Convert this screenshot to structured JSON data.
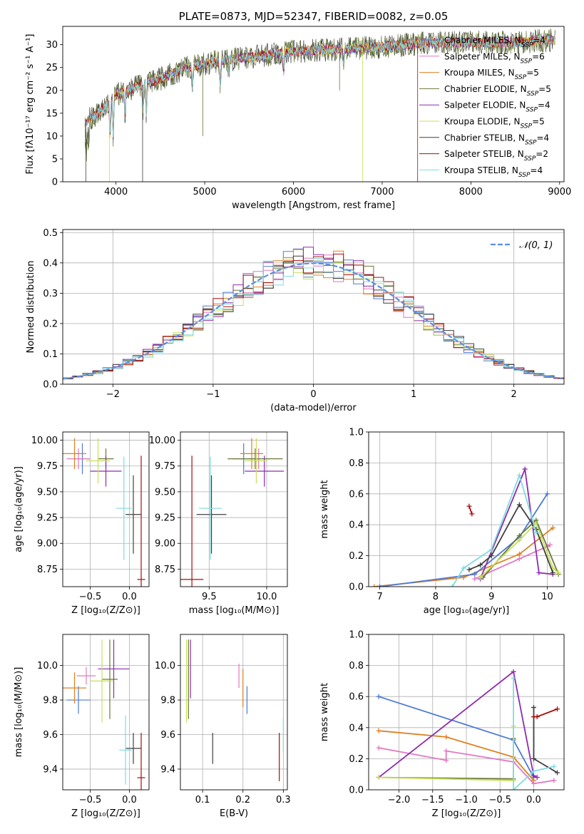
{
  "colors": {
    "chabrier_miles": "#4e79d6",
    "salpeter_miles": "#e377c2",
    "kroupa_miles": "#e07f1f",
    "chabrier_elodie": "#6a7a3a",
    "salpeter_elodie": "#8e2bb0",
    "kroupa_elodie": "#c7e05a",
    "chabrier_stelib": "#3f3f3f",
    "salpeter_stelib": "#a80d0d",
    "kroupa_stelib": "#7fdbe0",
    "normal_curve": "#5b8ee6",
    "grid": "#b0b0b0"
  },
  "chart_data": [
    {
      "id": "spectrum",
      "type": "line",
      "title": "PLATE=0873, MJD=52347, FIBERID=0082, z=0.05",
      "xlabel": "wavelength [Angstrom, rest frame]",
      "ylabel": "Flux [fλ10⁻¹⁷ erg cm⁻² s⁻¹ A⁻¹]",
      "xlim": [
        3400,
        9050
      ],
      "ylim": [
        0,
        34
      ],
      "xticks": [
        4000,
        5000,
        6000,
        7000,
        8000,
        9000
      ],
      "yticks": [
        0,
        5,
        10,
        15,
        20,
        25,
        30
      ],
      "grid": false,
      "legend_position": "top-right",
      "continuum_x": [
        3650,
        3800,
        4000,
        4200,
        4500,
        4800,
        5200,
        5600,
        6000,
        6500,
        7000,
        7500,
        8000,
        8500,
        8900
      ],
      "continuum_y": [
        13,
        15,
        19,
        20.5,
        22.5,
        25,
        26.5,
        27.5,
        28.5,
        29,
        29.5,
        30.5,
        30.5,
        30.5,
        31
      ],
      "series": [
        {
          "name": "Chabrier MILES, N_SSP=4",
          "color_key": "chabrier_miles"
        },
        {
          "name": "Salpeter MILES, N_SSP=6",
          "color_key": "salpeter_miles"
        },
        {
          "name": "Kroupa MILES, N_SSP=5",
          "color_key": "kroupa_miles"
        },
        {
          "name": "Chabrier ELODIE, N_SSP=5",
          "color_key": "chabrier_elodie"
        },
        {
          "name": "Salpeter ELODIE, N_SSP=4",
          "color_key": "salpeter_elodie"
        },
        {
          "name": "Kroupa ELODIE, N_SSP=5",
          "color_key": "kroupa_elodie"
        },
        {
          "name": "Chabrier STELIB, N_SSP=4",
          "color_key": "chabrier_stelib"
        },
        {
          "name": "Salpeter STELIB, N_SSP=2",
          "color_key": "salpeter_stelib"
        },
        {
          "name": "Kroupa STELIB, N_SSP=4",
          "color_key": "kroupa_stelib"
        }
      ]
    },
    {
      "id": "residuals",
      "type": "line",
      "xlabel": "(data-model)/error",
      "ylabel": "Normed distribution",
      "xlim": [
        -2.5,
        2.5
      ],
      "ylim": [
        0,
        0.51
      ],
      "xticks": [
        -2,
        -1,
        0,
        1,
        2
      ],
      "yticks": [
        0.0,
        0.1,
        0.2,
        0.3,
        0.4,
        0.5
      ],
      "grid": true,
      "legend_position": "top-right",
      "legend_label": "𝒩(0, 1)",
      "bin_width": 0.1
    },
    {
      "id": "age_vs_Z",
      "type": "scatter",
      "xlabel": "Z [log₁₀(Z/Z⊙)]",
      "ylabel": "age  [log₁₀(age/yr)]",
      "xlim": [
        -0.85,
        0.25
      ],
      "ylim": [
        8.58,
        10.08
      ],
      "xticks": [
        -0.5,
        0.0
      ],
      "yticks": [
        8.75,
        9.0,
        9.25,
        9.5,
        9.75,
        10.0
      ],
      "grid": true,
      "points": [
        {
          "c": "chabrier_miles",
          "x": -0.6,
          "xe": 0.1,
          "y": 9.82,
          "ye": 0.15
        },
        {
          "c": "salpeter_miles",
          "x": -0.65,
          "xe": 0.15,
          "y": 9.82,
          "ye": 0.1
        },
        {
          "c": "kroupa_miles",
          "x": -0.7,
          "xe": 0.15,
          "y": 9.87,
          "ye": 0.15
        },
        {
          "c": "chabrier_elodie",
          "x": -0.3,
          "xe": 0.1,
          "y": 9.82,
          "ye": 0.1
        },
        {
          "c": "salpeter_elodie",
          "x": -0.3,
          "xe": 0.2,
          "y": 9.7,
          "ye": 0.15
        },
        {
          "c": "kroupa_elodie",
          "x": -0.4,
          "xe": 0.15,
          "y": 9.8,
          "ye": 0.22
        },
        {
          "c": "chabrier_stelib",
          "x": 0.05,
          "xe": 0.1,
          "y": 9.28,
          "ye": 0.38
        },
        {
          "c": "salpeter_stelib",
          "x": 0.15,
          "xe": 0.05,
          "y": 8.65,
          "ye": 1.2
        },
        {
          "c": "kroupa_stelib",
          "x": -0.07,
          "xe": 0.1,
          "y": 9.34,
          "ye": 0.5
        }
      ]
    },
    {
      "id": "age_vs_mass",
      "type": "scatter",
      "xlabel": "mass [log₁₀(M/M⊙)]",
      "ylabel": "",
      "xlim": [
        9.25,
        10.18
      ],
      "ylim": [
        8.58,
        10.08
      ],
      "xticks": [
        9.5,
        10.0
      ],
      "yticks": [
        8.75,
        9.0,
        9.25,
        9.5,
        9.75,
        10.0
      ],
      "grid": true,
      "points": [
        {
          "c": "chabrier_miles",
          "x": 9.8,
          "xe": 0.1,
          "y": 9.82,
          "ye": 0.15
        },
        {
          "c": "salpeter_miles",
          "x": 9.93,
          "xe": 0.1,
          "y": 9.82,
          "ye": 0.1
        },
        {
          "c": "kroupa_miles",
          "x": 9.87,
          "xe": 0.1,
          "y": 9.87,
          "ye": 0.15
        },
        {
          "c": "chabrier_elodie",
          "x": 9.9,
          "xe": 0.24,
          "y": 9.82,
          "ye": 0.1
        },
        {
          "c": "salpeter_elodie",
          "x": 9.98,
          "xe": 0.17,
          "y": 9.7,
          "ye": 0.15
        },
        {
          "c": "kroupa_elodie",
          "x": 9.91,
          "xe": 0.1,
          "y": 9.8,
          "ye": 0.22
        },
        {
          "c": "chabrier_stelib",
          "x": 9.52,
          "xe": 0.13,
          "y": 9.28,
          "ye": 0.38
        },
        {
          "c": "salpeter_stelib",
          "x": 9.35,
          "xe": 0.1,
          "y": 8.65,
          "ye": 1.2
        },
        {
          "c": "kroupa_stelib",
          "x": 9.51,
          "xe": 0.1,
          "y": 9.34,
          "ye": 0.5
        }
      ]
    },
    {
      "id": "mass_weight_vs_age",
      "type": "line",
      "xlabel": "age  [log₁₀(age/yr)]",
      "ylabel": "mass weight",
      "xlim": [
        6.8,
        10.3
      ],
      "ylim": [
        0,
        1
      ],
      "xticks": [
        7,
        8,
        9,
        10
      ],
      "yticks": [
        0.0,
        0.2,
        0.4,
        0.6,
        0.8,
        1.0
      ],
      "grid": true,
      "series": [
        {
          "c": "kroupa_miles",
          "x": [
            6.9,
            8.5,
            9.5,
            10.1
          ],
          "y": [
            0.0,
            0.06,
            0.21,
            0.38
          ]
        },
        {
          "c": "chabrier_miles",
          "x": [
            7.0,
            8.7,
            9.5,
            10.0
          ],
          "y": [
            0.0,
            0.08,
            0.32,
            0.6
          ]
        },
        {
          "c": "salpeter_miles",
          "x": [
            8.7,
            9.5,
            10.0,
            10.05
          ],
          "y": [
            0.05,
            0.18,
            0.26,
            0.27
          ]
        },
        {
          "c": "chabrier_elodie",
          "x": [
            8.85,
            9.5,
            9.8,
            10.2
          ],
          "y": [
            0.06,
            0.33,
            0.43,
            0.08
          ]
        },
        {
          "c": "salpeter_elodie",
          "x": [
            8.8,
            9.6,
            9.85,
            10.1
          ],
          "y": [
            0.05,
            0.76,
            0.09,
            0.08
          ]
        },
        {
          "c": "kroupa_elodie",
          "x": [
            8.8,
            9.5,
            9.8,
            10.1,
            10.2
          ],
          "y": [
            0.06,
            0.3,
            0.41,
            0.12,
            0.09
          ]
        },
        {
          "c": "chabrier_stelib",
          "x": [
            8.6,
            8.8,
            9.0,
            9.5,
            9.8,
            10.1
          ],
          "y": [
            0.11,
            0.14,
            0.2,
            0.53,
            0.37,
            0.09
          ]
        },
        {
          "c": "salpeter_stelib",
          "x": [
            8.6,
            8.65
          ],
          "y": [
            0.52,
            0.47
          ]
        },
        {
          "c": "kroupa_stelib",
          "x": [
            8.3,
            8.5,
            9.0,
            9.5,
            9.8
          ],
          "y": [
            0.0,
            0.12,
            0.24,
            0.72,
            0.35
          ]
        }
      ]
    },
    {
      "id": "mass_vs_Z",
      "type": "scatter",
      "xlabel": "Z [log₁₀(Z/Z⊙)]",
      "ylabel": "mass [log₁₀(M/M⊙)]",
      "xlim": [
        -0.85,
        0.25
      ],
      "ylim": [
        9.28,
        10.18
      ],
      "xticks": [
        -0.5,
        0.0
      ],
      "yticks": [
        9.4,
        9.6,
        9.8,
        10.0
      ],
      "grid": true,
      "points": [
        {
          "c": "chabrier_miles",
          "x": -0.65,
          "xe": 0.15,
          "y": 9.8,
          "ye": 0.08
        },
        {
          "c": "salpeter_miles",
          "x": -0.55,
          "xe": 0.12,
          "y": 9.94,
          "ye": 0.05
        },
        {
          "c": "kroupa_miles",
          "x": -0.7,
          "xe": 0.15,
          "y": 9.87,
          "ye": 0.09
        },
        {
          "c": "chabrier_elodie",
          "x": -0.25,
          "xe": 0.1,
          "y": 9.92,
          "ye": 0.23
        },
        {
          "c": "salpeter_elodie",
          "x": -0.2,
          "xe": 0.2,
          "y": 9.98,
          "ye": 0.17
        },
        {
          "c": "kroupa_elodie",
          "x": -0.35,
          "xe": 0.15,
          "y": 9.91,
          "ye": 0.24
        },
        {
          "c": "chabrier_stelib",
          "x": 0.05,
          "xe": 0.1,
          "y": 9.52,
          "ye": 0.09
        },
        {
          "c": "salpeter_stelib",
          "x": 0.15,
          "xe": 0.05,
          "y": 9.35,
          "ye": 0.26
        },
        {
          "c": "kroupa_stelib",
          "x": -0.05,
          "xe": 0.08,
          "y": 9.51,
          "ye": 0.2
        }
      ]
    },
    {
      "id": "mass_vs_ebv",
      "type": "scatter",
      "xlabel": "E(B-V)",
      "ylabel": "",
      "xlim": [
        0.045,
        0.31
      ],
      "ylim": [
        9.28,
        10.18
      ],
      "xticks": [
        0.1,
        0.2,
        0.3
      ],
      "yticks": [
        9.4,
        9.6,
        9.8,
        10.0
      ],
      "grid": true,
      "points": [
        {
          "c": "chabrier_miles",
          "x": 0.21,
          "xe": 0,
          "y": 9.8,
          "ye": 0.08
        },
        {
          "c": "salpeter_miles",
          "x": 0.19,
          "xe": 0,
          "y": 9.94,
          "ye": 0.07
        },
        {
          "c": "kroupa_miles",
          "x": 0.2,
          "xe": 0,
          "y": 9.87,
          "ye": 0.11
        },
        {
          "c": "chabrier_elodie",
          "x": 0.065,
          "xe": 0,
          "y": 9.92,
          "ye": 0.23
        },
        {
          "c": "salpeter_elodie",
          "x": 0.07,
          "xe": 0,
          "y": 9.98,
          "ye": 0.17
        },
        {
          "c": "kroupa_elodie",
          "x": 0.06,
          "xe": 0,
          "y": 9.91,
          "ye": 0.24
        },
        {
          "c": "chabrier_stelib",
          "x": 0.125,
          "xe": 0,
          "y": 9.52,
          "ye": 0.09
        },
        {
          "c": "salpeter_stelib",
          "x": 0.29,
          "xe": 0,
          "y": 9.47,
          "ye": 0.14
        },
        {
          "c": "kroupa_stelib",
          "x": 0.3,
          "xe": 0,
          "y": 9.6,
          "ye": 0.1
        }
      ]
    },
    {
      "id": "mass_weight_vs_Z",
      "type": "line",
      "xlabel": "Z [log₁₀(Z/Z⊙)]",
      "ylabel": "mass weight",
      "xlim": [
        -2.45,
        0.45
      ],
      "ylim": [
        0,
        1
      ],
      "xticks": [
        -2.0,
        -1.5,
        -1.0,
        -0.5,
        0.0
      ],
      "yticks": [
        0.0,
        0.2,
        0.4,
        0.6,
        0.8,
        1.0
      ],
      "grid": true,
      "series": [
        {
          "c": "chabrier_miles",
          "x": [
            -2.3,
            -0.3,
            0.0
          ],
          "y": [
            0.6,
            0.32,
            0.08
          ]
        },
        {
          "c": "kroupa_miles",
          "x": [
            -2.3,
            -1.3,
            -0.3,
            0.0
          ],
          "y": [
            0.38,
            0.34,
            0.21,
            0.06
          ]
        },
        {
          "c": "salpeter_miles",
          "x": [
            -2.3,
            -1.3,
            -1.3,
            -0.3,
            0.0,
            0.3
          ],
          "y": [
            0.27,
            0.19,
            0.25,
            0.18,
            0.04,
            0.06
          ]
        },
        {
          "c": "chabrier_elodie",
          "x": [
            -2.3,
            -0.3,
            -0.3
          ],
          "y": [
            0.08,
            0.07,
            0.33
          ]
        },
        {
          "c": "salpeter_elodie",
          "x": [
            -2.3,
            -0.3,
            0.0,
            0.05
          ],
          "y": [
            0.08,
            0.76,
            0.09,
            0.08
          ]
        },
        {
          "c": "kroupa_elodie",
          "x": [
            -2.3,
            -0.3,
            -0.3
          ],
          "y": [
            0.08,
            0.06,
            0.41
          ]
        },
        {
          "c": "chabrier_stelib",
          "x": [
            0.0,
            0.0,
            0.35
          ],
          "y": [
            0.53,
            0.2,
            0.11
          ]
        },
        {
          "c": "salpeter_stelib",
          "x": [
            0.0,
            0.05,
            0.35
          ],
          "y": [
            0.47,
            0.47,
            0.52
          ]
        },
        {
          "c": "kroupa_stelib",
          "x": [
            -0.3,
            -0.3,
            0.0,
            0.3
          ],
          "y": [
            0.72,
            0.0,
            0.12,
            0.15
          ]
        }
      ]
    }
  ]
}
